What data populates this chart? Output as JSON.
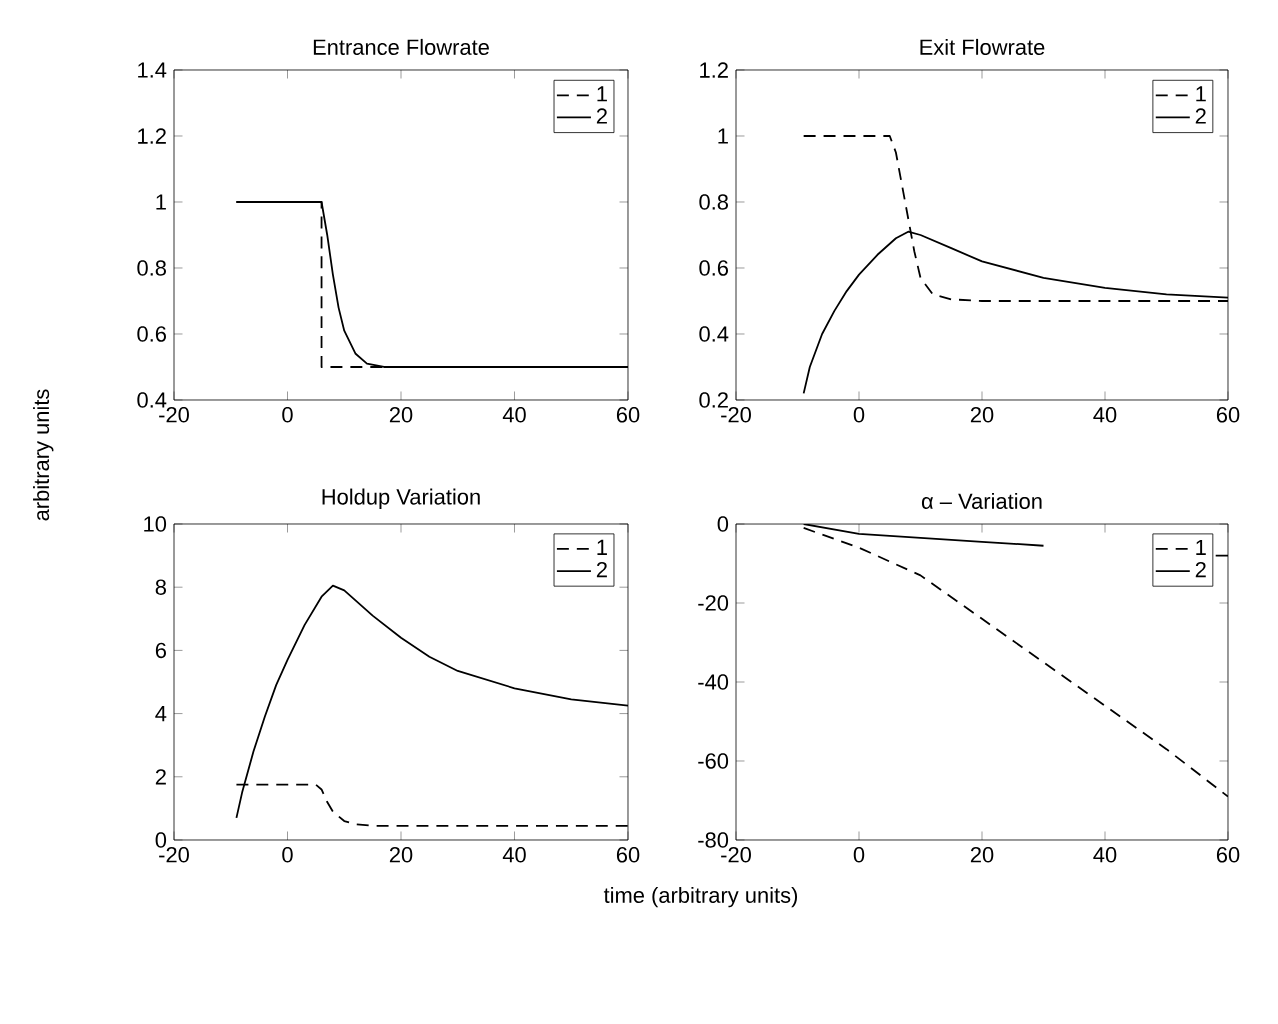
{
  "chart_data": [
    {
      "type": "line",
      "title": "Entrance Flowrate",
      "ylabel": "arbitrary units",
      "xlim": [
        -20,
        60
      ],
      "xticks": [
        -20,
        0,
        20,
        40,
        60
      ],
      "ylim": [
        0.4,
        1.4
      ],
      "yticks": [
        0.4,
        0.6,
        0.8,
        1,
        1.2,
        1.4
      ],
      "legend": "top right",
      "series": [
        {
          "name": "1",
          "color": "#000000",
          "line_style": "dashed",
          "x": [
            -9,
            6,
            6,
            8,
            60
          ],
          "values": [
            1,
            1,
            0.5,
            0.5,
            0.5
          ]
        },
        {
          "name": "2",
          "color": "#000000",
          "line_style": "solid",
          "x": [
            -9,
            6,
            7,
            8,
            9,
            10,
            12,
            14,
            17,
            60
          ],
          "values": [
            1,
            1,
            0.9,
            0.78,
            0.68,
            0.61,
            0.54,
            0.51,
            0.5,
            0.5
          ]
        }
      ]
    },
    {
      "type": "line",
      "title": "Exit Flowrate",
      "xlim": [
        -20,
        60
      ],
      "xticks": [
        -20,
        0,
        20,
        40,
        60
      ],
      "ylim": [
        0.2,
        1.2
      ],
      "yticks": [
        0.2,
        0.4,
        0.6,
        0.8,
        1,
        1.2
      ],
      "legend": "top right",
      "series": [
        {
          "name": "1",
          "color": "#000000",
          "line_style": "dashed",
          "x": [
            -9,
            5,
            6,
            7,
            8,
            9,
            10,
            12,
            15,
            20,
            60
          ],
          "values": [
            1,
            1,
            0.95,
            0.85,
            0.75,
            0.65,
            0.57,
            0.52,
            0.505,
            0.5,
            0.5
          ]
        },
        {
          "name": "2",
          "color": "#000000",
          "line_style": "solid",
          "x": [
            -9,
            -8,
            -6,
            -4,
            -2,
            0,
            3,
            6,
            8,
            10,
            15,
            20,
            30,
            40,
            50,
            60
          ],
          "values": [
            0.22,
            0.3,
            0.4,
            0.47,
            0.53,
            0.58,
            0.64,
            0.69,
            0.71,
            0.7,
            0.66,
            0.62,
            0.57,
            0.54,
            0.52,
            0.51
          ]
        }
      ]
    },
    {
      "type": "line",
      "title": "Holdup Variation",
      "xlabel": "time (arbitrary units)",
      "xlim": [
        -20,
        60
      ],
      "xticks": [
        -20,
        0,
        20,
        40,
        60
      ],
      "ylim": [
        0,
        10
      ],
      "yticks": [
        0,
        2,
        4,
        6,
        8,
        10
      ],
      "legend": "top right",
      "series": [
        {
          "name": "1",
          "color": "#000000",
          "line_style": "dashed",
          "x": [
            -9,
            5,
            6,
            7,
            8,
            10,
            12,
            15,
            60
          ],
          "values": [
            1.75,
            1.75,
            1.6,
            1.2,
            0.9,
            0.6,
            0.5,
            0.45,
            0.45
          ]
        },
        {
          "name": "2",
          "color": "#000000",
          "line_style": "solid",
          "x": [
            -9,
            -8,
            -6,
            -4,
            -2,
            0,
            3,
            6,
            8,
            10,
            15,
            20,
            25,
            30,
            40,
            50,
            60
          ],
          "values": [
            0.7,
            1.5,
            2.8,
            3.9,
            4.9,
            5.7,
            6.8,
            7.7,
            8.05,
            7.9,
            7.1,
            6.4,
            5.8,
            5.35,
            4.8,
            4.45,
            4.25
          ]
        }
      ]
    },
    {
      "type": "line",
      "title": "α – Variation",
      "xlim": [
        -20,
        60
      ],
      "xticks": [
        -20,
        0,
        20,
        40,
        60
      ],
      "ylim": [
        -80,
        0
      ],
      "yticks": [
        -80,
        -60,
        -40,
        -20,
        0
      ],
      "legend": "top right",
      "series": [
        {
          "name": "1",
          "color": "#000000",
          "line_style": "dashed",
          "x": [
            -9,
            0,
            10,
            20,
            30,
            40,
            50,
            60
          ],
          "values": [
            -1,
            -6,
            -13,
            -24,
            -35,
            -46,
            -57,
            -69
          ]
        },
        {
          "name": "2",
          "color": "#000000",
          "line_style": "solid",
          "x": [
            -9,
            0,
            10,
            20,
            30,
            35,
            58,
            60
          ],
          "values": [
            0,
            -2.5,
            -3.5,
            -4.5,
            -5.5,
            null,
            -8,
            -8
          ]
        }
      ]
    }
  ]
}
